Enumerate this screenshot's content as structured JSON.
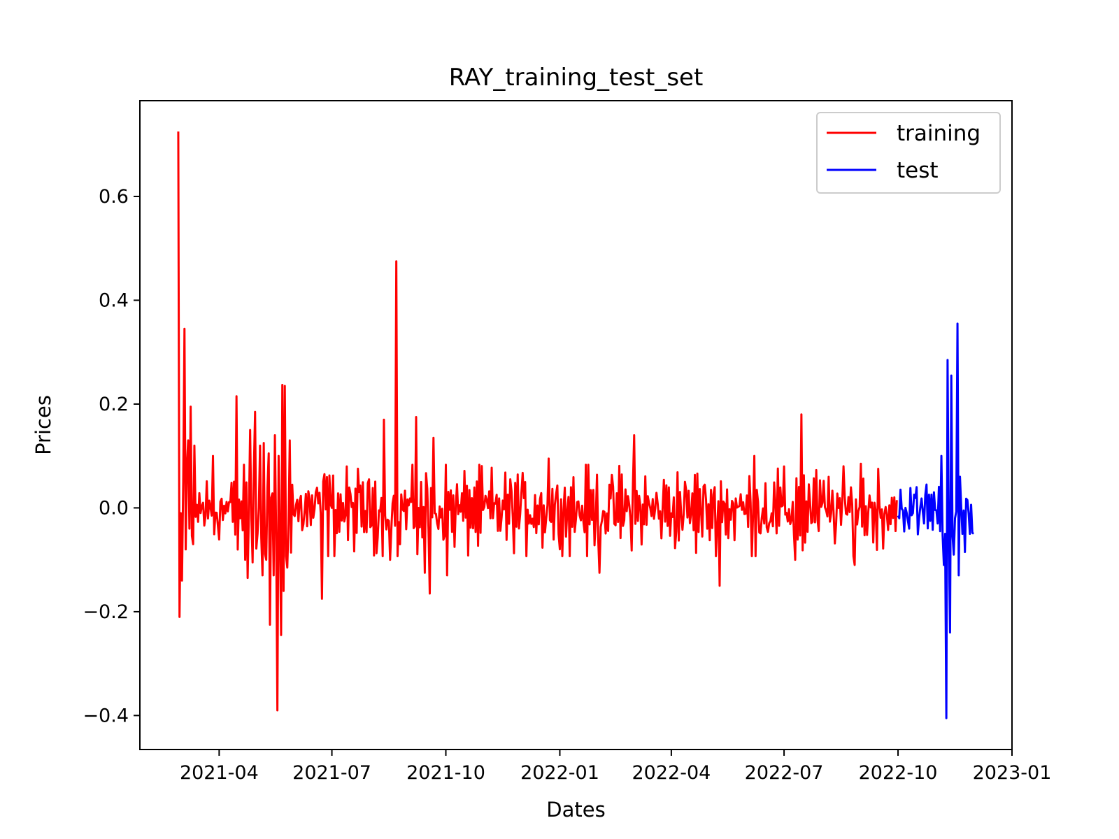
{
  "chart_data": {
    "type": "line",
    "title": "RAY_training_test_set",
    "xlabel": "Dates",
    "ylabel": "Prices",
    "xlim": [
      "2021-01-27",
      "2023-01-01"
    ],
    "ylim": [
      -0.4655,
      0.7845
    ],
    "x_ticks": [
      "2021-04",
      "2021-07",
      "2021-10",
      "2022-01",
      "2022-04",
      "2022-07",
      "2022-10",
      "2023-01"
    ],
    "x_tick_dates": [
      "2021-04-01",
      "2021-07-01",
      "2021-10-01",
      "2022-01-01",
      "2022-04-01",
      "2022-07-01",
      "2022-10-01",
      "2023-01-01"
    ],
    "y_ticks": [
      -0.4,
      -0.2,
      0.0,
      0.2,
      0.4,
      0.6
    ],
    "y_tick_labels": [
      "−0.4",
      "−0.2",
      "0.0",
      "0.2",
      "0.4",
      "0.6"
    ],
    "grid": false,
    "legend_position": "top-right",
    "series": [
      {
        "name": "training",
        "color": "#ff0000",
        "x_start": "2021-02-27",
        "x_end": "2022-09-30",
        "anchors": [
          [
            "2021-02-27",
            0.725
          ],
          [
            "2021-02-28",
            -0.21
          ],
          [
            "2021-03-01",
            -0.01
          ],
          [
            "2021-03-02",
            -0.14
          ],
          [
            "2021-03-04",
            0.345
          ],
          [
            "2021-03-05",
            -0.08
          ],
          [
            "2021-03-07",
            0.13
          ],
          [
            "2021-03-08",
            -0.04
          ],
          [
            "2021-03-09",
            0.195
          ],
          [
            "2021-03-11",
            -0.07
          ],
          [
            "2021-03-12",
            0.12
          ],
          [
            "2021-03-27",
            0.1
          ],
          [
            "2021-04-15",
            0.215
          ],
          [
            "2021-04-18",
            -0.02
          ],
          [
            "2021-04-22",
            -0.1
          ],
          [
            "2021-04-24",
            -0.135
          ],
          [
            "2021-04-26",
            0.15
          ],
          [
            "2021-04-28",
            -0.105
          ],
          [
            "2021-04-30",
            0.185
          ],
          [
            "2021-05-02",
            -0.05
          ],
          [
            "2021-05-04",
            0.12
          ],
          [
            "2021-05-06",
            -0.13
          ],
          [
            "2021-05-07",
            0.125
          ],
          [
            "2021-05-09",
            -0.1
          ],
          [
            "2021-05-11",
            0.105
          ],
          [
            "2021-05-12",
            -0.225
          ],
          [
            "2021-05-13",
            0.02
          ],
          [
            "2021-05-15",
            -0.13
          ],
          [
            "2021-05-16",
            0.14
          ],
          [
            "2021-05-18",
            -0.39
          ],
          [
            "2021-05-19",
            0.1
          ],
          [
            "2021-05-21",
            -0.245
          ],
          [
            "2021-05-22",
            0.237
          ],
          [
            "2021-05-23",
            -0.16
          ],
          [
            "2021-05-24",
            0.235
          ],
          [
            "2021-05-26",
            -0.115
          ],
          [
            "2021-05-28",
            0.13
          ],
          [
            "2021-06-23",
            -0.175
          ],
          [
            "2021-06-25",
            0.065
          ],
          [
            "2021-08-12",
            0.17
          ],
          [
            "2021-08-17",
            -0.1
          ],
          [
            "2021-08-22",
            0.475
          ],
          [
            "2021-08-25",
            -0.07
          ],
          [
            "2021-09-07",
            0.175
          ],
          [
            "2021-09-14",
            -0.125
          ],
          [
            "2021-09-18",
            -0.165
          ],
          [
            "2021-09-21",
            0.135
          ],
          [
            "2021-10-02",
            -0.13
          ],
          [
            "2021-12-23",
            0.095
          ],
          [
            "2022-02-02",
            -0.125
          ],
          [
            "2022-03-02",
            0.14
          ],
          [
            "2022-05-10",
            -0.15
          ],
          [
            "2022-06-07",
            0.1
          ],
          [
            "2022-07-10",
            -0.1
          ],
          [
            "2022-07-15",
            0.18
          ],
          [
            "2022-08-27",
            -0.11
          ],
          [
            "2022-09-01",
            0.085
          ],
          [
            "2022-09-30",
            0.015
          ]
        ]
      },
      {
        "name": "test",
        "color": "#0000ff",
        "x_start": "2022-10-01",
        "x_end": "2022-12-01",
        "anchors": [
          [
            "2022-10-01",
            -0.015
          ],
          [
            "2022-10-02",
            -0.02
          ],
          [
            "2022-10-03",
            0.035
          ],
          [
            "2022-10-05",
            -0.005
          ],
          [
            "2022-10-07",
            0.0
          ],
          [
            "2022-10-10",
            -0.04
          ],
          [
            "2022-10-13",
            -0.01
          ],
          [
            "2022-10-16",
            0.04
          ],
          [
            "2022-10-18",
            -0.02
          ],
          [
            "2022-10-22",
            -0.03
          ],
          [
            "2022-10-24",
            0.045
          ],
          [
            "2022-10-27",
            -0.025
          ],
          [
            "2022-10-30",
            0.03
          ],
          [
            "2022-11-02",
            -0.03
          ],
          [
            "2022-11-05",
            0.1
          ],
          [
            "2022-11-07",
            -0.11
          ],
          [
            "2022-11-08",
            -0.05
          ],
          [
            "2022-11-09",
            -0.405
          ],
          [
            "2022-11-10",
            0.285
          ],
          [
            "2022-11-12",
            -0.24
          ],
          [
            "2022-11-13",
            0.255
          ],
          [
            "2022-11-15",
            -0.09
          ],
          [
            "2022-11-16",
            -0.02
          ],
          [
            "2022-11-18",
            0.355
          ],
          [
            "2022-11-19",
            -0.13
          ],
          [
            "2022-11-20",
            0.06
          ],
          [
            "2022-11-22",
            -0.05
          ],
          [
            "2022-11-23",
            -0.005
          ],
          [
            "2022-11-24",
            -0.085
          ],
          [
            "2022-11-26",
            0.015
          ],
          [
            "2022-11-28",
            -0.05
          ],
          [
            "2022-12-01",
            -0.05
          ]
        ]
      }
    ]
  }
}
